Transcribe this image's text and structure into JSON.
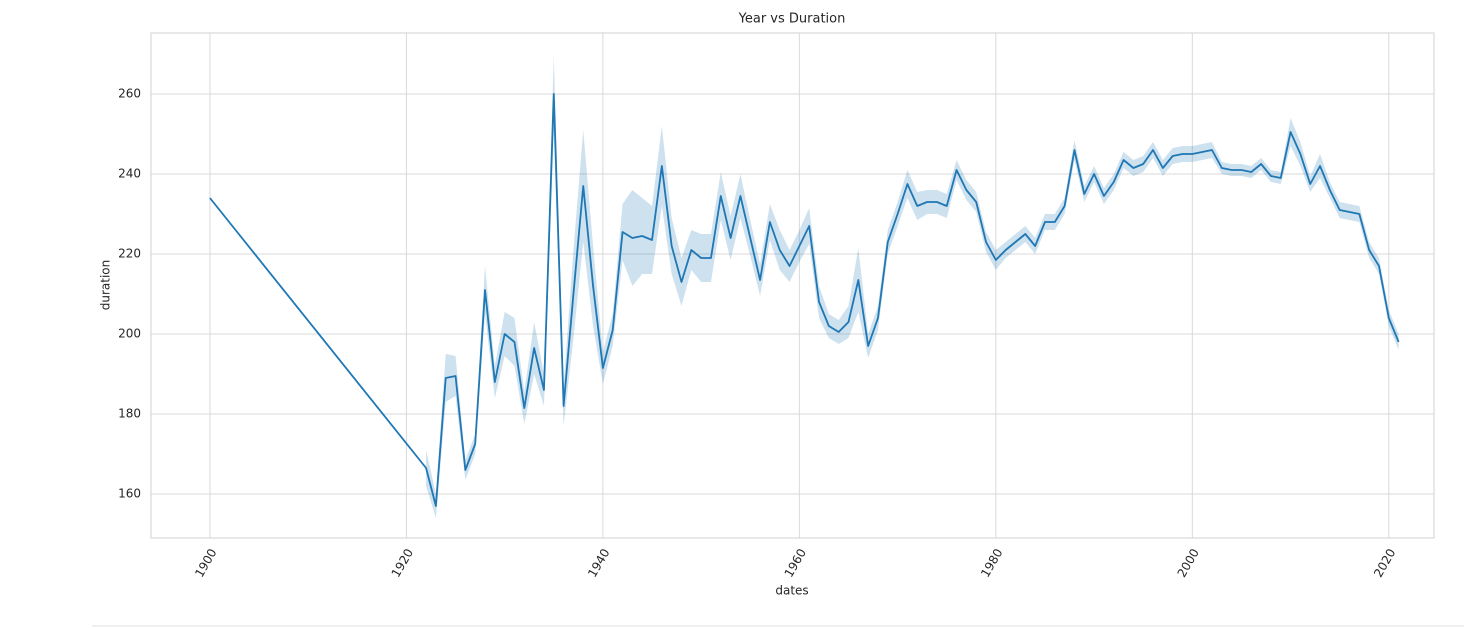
{
  "chart_data": {
    "type": "line",
    "title": "Year vs Duration",
    "x_label": "dates",
    "y_label": "duration",
    "color": "#1f77b4",
    "grid": true,
    "x": [
      1900,
      1922,
      1923,
      1924,
      1925,
      1926,
      1927,
      1928,
      1929,
      1930,
      1931,
      1932,
      1933,
      1934,
      1935,
      1936,
      1937,
      1938,
      1939,
      1940,
      1941,
      1942,
      1943,
      1944,
      1945,
      1946,
      1947,
      1948,
      1949,
      1950,
      1951,
      1952,
      1953,
      1954,
      1955,
      1956,
      1957,
      1958,
      1959,
      1960,
      1961,
      1962,
      1963,
      1964,
      1965,
      1966,
      1967,
      1968,
      1969,
      1970,
      1971,
      1972,
      1973,
      1974,
      1975,
      1976,
      1977,
      1978,
      1979,
      1980,
      1981,
      1982,
      1983,
      1984,
      1985,
      1986,
      1987,
      1988,
      1989,
      1990,
      1991,
      1992,
      1993,
      1994,
      1995,
      1996,
      1997,
      1998,
      1999,
      2000,
      2001,
      2002,
      2003,
      2004,
      2005,
      2006,
      2007,
      2008,
      2009,
      2010,
      2011,
      2012,
      2013,
      2014,
      2015,
      2016,
      2017,
      2018,
      2019,
      2020,
      2021
    ],
    "values": [
      234,
      166.5,
      157,
      189,
      189.5,
      166,
      172.5,
      211,
      188,
      200,
      198,
      181.5,
      196.5,
      186,
      260,
      182,
      210,
      237,
      212,
      191.5,
      201,
      225.5,
      224,
      224.5,
      223.5,
      242,
      222,
      213,
      221,
      219,
      219,
      234.5,
      224,
      234.5,
      224,
      213.5,
      228,
      221,
      217,
      222,
      227,
      208,
      202,
      200.5,
      203,
      213.5,
      197,
      204,
      223,
      230,
      237.5,
      232,
      233,
      233,
      232,
      241,
      236,
      233,
      223,
      218.5,
      221,
      223,
      225,
      222,
      228,
      228,
      232,
      246,
      235,
      240,
      234.5,
      238,
      243.5,
      241.5,
      242.5,
      246,
      241.5,
      244.5,
      245,
      245,
      245.5,
      246,
      241.5,
      241,
      241,
      240.5,
      242.5,
      239.5,
      239,
      250.5,
      245,
      237.5,
      242,
      236,
      231,
      230.5,
      230,
      221,
      217,
      204,
      198
    ],
    "lower": [
      null,
      162,
      154,
      183,
      184.5,
      163.5,
      170,
      205,
      184,
      194.5,
      192,
      177.5,
      190,
      182,
      250.5,
      177,
      199,
      223,
      202,
      187.5,
      197,
      218.5,
      212,
      215,
      215,
      232,
      215,
      207,
      216,
      213,
      213,
      228.5,
      218.5,
      229,
      219.5,
      209.5,
      223.5,
      216,
      213,
      218,
      222.5,
      204,
      199,
      197.5,
      199,
      205.5,
      194,
      201,
      220,
      227,
      234,
      228.5,
      230,
      230,
      229,
      238.5,
      233.5,
      230.5,
      220.5,
      216,
      219,
      221,
      223,
      220,
      226,
      226,
      230,
      243.5,
      233,
      238,
      232.5,
      236,
      241.5,
      239.5,
      240.5,
      244,
      239.5,
      242.5,
      243,
      243,
      243.5,
      244,
      240,
      239.5,
      239.5,
      239,
      241,
      238,
      237.5,
      247,
      242,
      235.5,
      239,
      234,
      229,
      228.5,
      228,
      219,
      215,
      202,
      196
    ],
    "upper": [
      null,
      171,
      160,
      195,
      194.5,
      168.5,
      175,
      217,
      192,
      205.5,
      204,
      185.5,
      203,
      190,
      269.5,
      187,
      221,
      251,
      222,
      195.5,
      205,
      232.5,
      236,
      234,
      232,
      252,
      229,
      219,
      226,
      225,
      225,
      240.5,
      229.5,
      240,
      228.5,
      217.5,
      232.5,
      226,
      221,
      226,
      231.5,
      212,
      205,
      203.5,
      207,
      221.5,
      200,
      207,
      226,
      233,
      241,
      235.5,
      236,
      236,
      235,
      243.5,
      238.5,
      235.5,
      225.5,
      221,
      223,
      225,
      227,
      224,
      230,
      230,
      234,
      248.5,
      237,
      242,
      236.5,
      240,
      245.5,
      243.5,
      244.5,
      248,
      243.5,
      246.5,
      247,
      247,
      247.5,
      248,
      243,
      242.5,
      242.5,
      242,
      244,
      241,
      240.5,
      254,
      248,
      239.5,
      245,
      238,
      233,
      232.5,
      232,
      223,
      219,
      206,
      200
    ],
    "xlim": [
      1894,
      2024.6
    ],
    "ylim": [
      149,
      275.25
    ],
    "xticks": [
      1900,
      1920,
      1940,
      1960,
      1980,
      2000,
      2020
    ],
    "yticks": [
      160,
      180,
      200,
      220,
      240,
      260
    ]
  }
}
